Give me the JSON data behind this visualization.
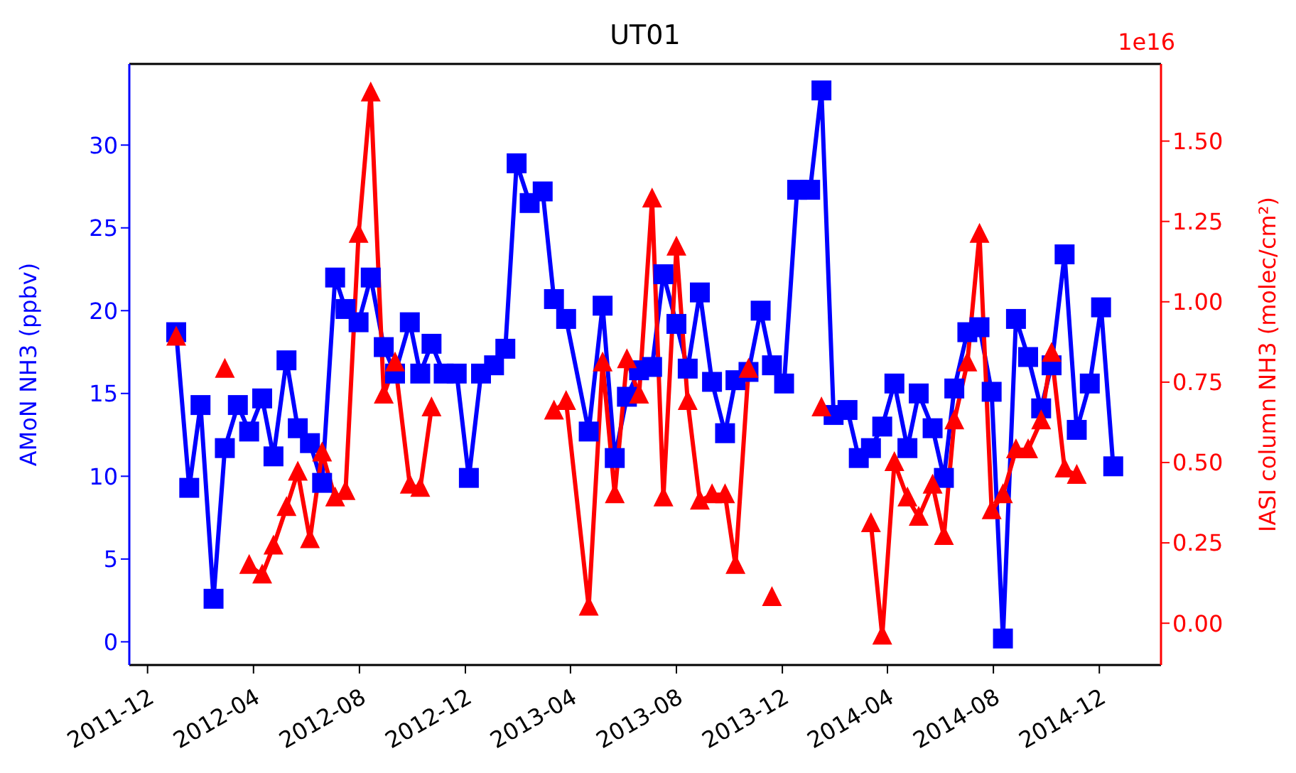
{
  "chart_data": {
    "type": "line",
    "title": "UT01",
    "ylabel": "AMoN NH3 (ppbv)",
    "y2label": "IASI column NH3 (molec/cm²)",
    "annotations": [
      "1e16"
    ],
    "x": [
      "2012-01-03",
      "2012-01-18",
      "2012-01-31",
      "2012-02-15",
      "2012-02-28",
      "2012-03-14",
      "2012-03-27",
      "2012-04-11",
      "2012-04-24",
      "2012-05-09",
      "2012-05-22",
      "2012-06-05",
      "2012-06-19",
      "2012-07-04",
      "2012-07-16",
      "2012-07-31",
      "2012-08-14",
      "2012-08-29",
      "2012-09-11",
      "2012-09-28",
      "2012-10-10",
      "2012-10-23",
      "2012-11-06",
      "2012-11-21",
      "2012-12-05",
      "2012-12-19",
      "2013-01-03",
      "2013-01-16",
      "2013-01-29",
      "2013-02-13",
      "2013-02-28",
      "2013-03-13",
      "2013-03-27",
      "2013-04-22",
      "2013-05-08",
      "2013-05-22",
      "2013-06-05",
      "2013-06-19",
      "2013-07-04",
      "2013-07-17",
      "2013-08-01",
      "2013-08-14",
      "2013-08-28",
      "2013-09-11",
      "2013-09-26",
      "2013-10-08",
      "2013-10-23",
      "2013-11-06",
      "2013-11-19",
      "2013-12-03",
      "2013-12-18",
      "2014-01-02",
      "2014-01-15",
      "2014-01-29",
      "2014-02-14",
      "2014-02-27",
      "2014-03-13",
      "2014-03-26",
      "2014-04-09",
      "2014-04-24",
      "2014-05-07",
      "2014-05-23",
      "2014-06-05",
      "2014-06-17",
      "2014-07-02",
      "2014-07-16",
      "2014-07-30",
      "2014-08-12",
      "2014-08-27",
      "2014-09-10",
      "2014-09-25",
      "2014-10-07",
      "2014-10-22",
      "2014-11-05",
      "2014-11-20",
      "2014-12-03",
      "2014-12-17"
    ],
    "series": [
      {
        "color": "#0000ff",
        "marker": "square",
        "values": [
          18.7,
          9.3,
          14.3,
          2.6,
          11.7,
          14.3,
          12.7,
          14.7,
          11.2,
          17.0,
          12.9,
          12.0,
          9.6,
          22.0,
          20.1,
          19.3,
          22.0,
          17.8,
          16.2,
          19.3,
          16.2,
          18.0,
          16.2,
          16.2,
          9.9,
          16.2,
          16.7,
          17.7,
          28.9,
          26.5,
          27.2,
          20.7,
          19.5,
          12.7,
          20.3,
          11.1,
          14.8,
          16.4,
          16.6,
          22.2,
          19.2,
          16.5,
          21.1,
          15.7,
          12.6,
          15.8,
          16.3,
          20.0,
          16.7,
          15.6,
          27.3,
          27.3,
          33.3,
          13.7,
          14.0,
          11.1,
          11.7,
          13.0,
          15.6,
          11.7,
          15.0,
          12.9,
          9.9,
          15.3,
          18.7,
          19.0,
          15.1,
          0.2,
          19.5,
          17.2,
          14.1,
          16.7,
          23.4,
          12.8,
          15.6,
          20.2,
          10.6
        ]
      },
      {
        "color": "#ff0000",
        "marker": "triangle",
        "axis": "y2",
        "values": [
          0.89,
          null,
          null,
          null,
          0.79,
          null,
          0.18,
          0.15,
          0.24,
          0.36,
          0.47,
          0.26,
          0.53,
          0.39,
          0.41,
          1.21,
          1.65,
          0.71,
          0.81,
          0.43,
          0.42,
          0.67,
          null,
          null,
          null,
          null,
          null,
          null,
          null,
          null,
          null,
          0.66,
          0.69,
          0.05,
          0.81,
          0.4,
          0.82,
          0.71,
          1.32,
          0.39,
          1.17,
          0.69,
          0.38,
          0.4,
          0.4,
          0.18,
          0.79,
          null,
          0.08,
          null,
          null,
          null,
          0.67,
          null,
          null,
          null,
          0.31,
          -0.04,
          0.5,
          0.39,
          0.33,
          0.43,
          0.27,
          0.63,
          0.81,
          1.21,
          0.35,
          0.4,
          0.54,
          0.54,
          0.63,
          0.84,
          0.48,
          0.46,
          null,
          null,
          null
        ]
      }
    ],
    "xlim": [
      "2011-11-10",
      "2015-02-10"
    ],
    "xticks": [
      "2011-12",
      "2012-04",
      "2012-08",
      "2012-12",
      "2013-04",
      "2013-08",
      "2013-12",
      "2014-04",
      "2014-08",
      "2014-12"
    ],
    "ylim": [
      -1.4,
      34.9
    ],
    "yticks": [
      0,
      5,
      10,
      15,
      20,
      25,
      30
    ],
    "y2lim": [
      -0.13,
      1.74
    ],
    "y2ticks": [
      {
        "value": 0,
        "label": "0.00"
      },
      {
        "value": 0.25,
        "label": "0.25"
      },
      {
        "value": 0.5,
        "label": "0.50"
      },
      {
        "value": 0.75,
        "label": "0.75"
      },
      {
        "value": 1,
        "label": "1.00"
      },
      {
        "value": 1.25,
        "label": "1.25"
      },
      {
        "value": 1.5,
        "label": "1.50"
      }
    ],
    "grid": false,
    "legend": false,
    "line_style": "solid"
  }
}
